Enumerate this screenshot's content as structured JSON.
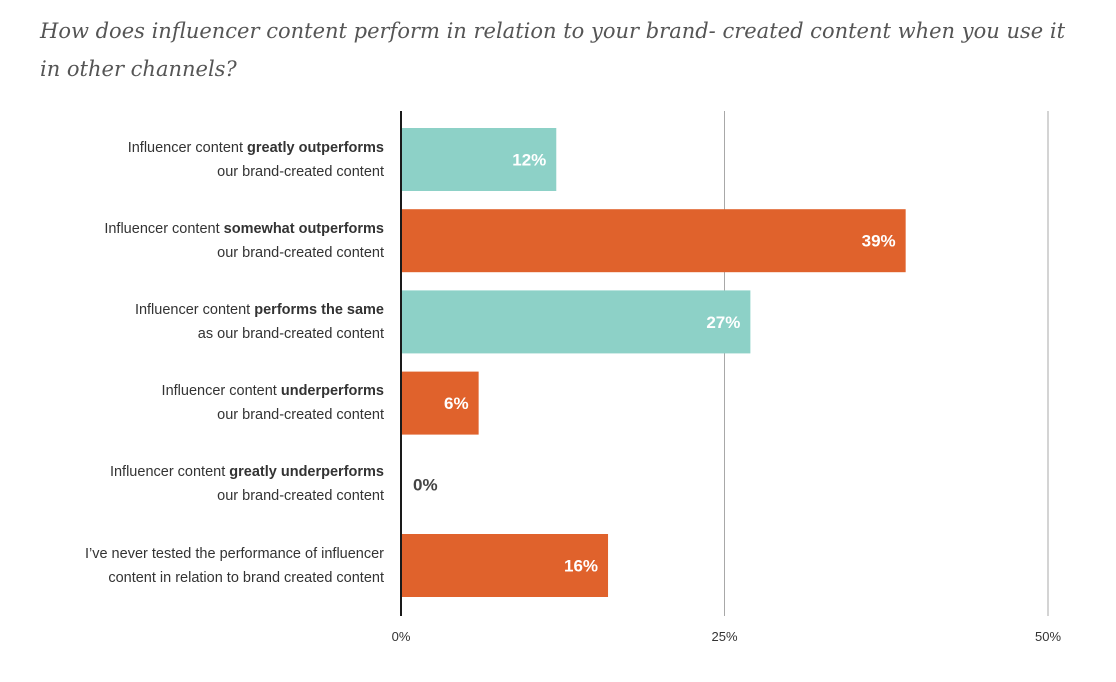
{
  "chart_data": {
    "type": "bar",
    "orientation": "horizontal",
    "title": "How does influencer content perform in relation to your brand- created content when you use it in other channels?",
    "categories": [
      [
        "Influencer content ",
        "greatly outperforms",
        "",
        "our brand-created content"
      ],
      [
        "Influencer content ",
        "somewhat outperforms",
        "",
        "our brand-created content"
      ],
      [
        "Influencer content ",
        "performs the same",
        "",
        "as our brand-created content"
      ],
      [
        "Influencer content ",
        "underperforms",
        "",
        "our brand-created content"
      ],
      [
        "Influencer content ",
        "greatly underperforms",
        "",
        "our brand-created content"
      ],
      [
        "I’ve never tested the performance of influencer",
        "",
        "",
        "content in relation to brand created content"
      ]
    ],
    "values": [
      12,
      39,
      27,
      6,
      0,
      16
    ],
    "value_labels": [
      "12%",
      "39%",
      "27%",
      "6%",
      "0%",
      "16%"
    ],
    "bar_colors": [
      "#8dd1c7",
      "#e0622c",
      "#8dd1c7",
      "#e0622c",
      "#e0622c",
      "#e0622c"
    ],
    "xlim": [
      0,
      50
    ],
    "xticks": [
      0,
      25,
      50
    ],
    "xtick_labels": [
      "0%",
      "25%",
      "50%"
    ],
    "grid": true,
    "xlabel": "",
    "ylabel": ""
  }
}
